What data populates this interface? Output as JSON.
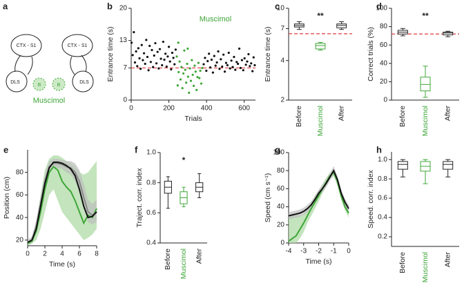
{
  "diagram": {
    "label": "a",
    "left": {
      "cortex": "CTX - S1",
      "striatum": "DLS"
    },
    "right": {
      "cortex": "CTX - S1",
      "striatum": "DLS"
    },
    "injection_marks": [
      "B",
      "B"
    ],
    "drug": "Muscimol"
  },
  "chart_data": [
    {
      "type": "scatter",
      "label": "b",
      "y_label": "Entrance time (s)",
      "x_label": "Trials",
      "annotation": "Muscimol",
      "annotation_color": "#3ea637",
      "xlim": [
        0,
        660
      ],
      "xticks": [
        0,
        200,
        400,
        600
      ],
      "ylim": [
        0,
        20
      ],
      "yticks": [
        0,
        7,
        13,
        20
      ],
      "reference_line": 7,
      "reference_color": "#e0393e",
      "series": [
        {
          "color": "#111111",
          "x": [
            2,
            8,
            14,
            20,
            26,
            32,
            38,
            44,
            50,
            56,
            62,
            68,
            74,
            80,
            86,
            92,
            98,
            104,
            110,
            116,
            122,
            128,
            134,
            140,
            146,
            152,
            158,
            164,
            170,
            176,
            182,
            188,
            194,
            200,
            206,
            212,
            218,
            224,
            230,
            236
          ],
          "values": [
            12.5,
            9.8,
            14.8,
            8.2,
            10.6,
            7.4,
            11.3,
            9.1,
            6.8,
            12.0,
            8.7,
            10.2,
            7.9,
            13.1,
            9.4,
            6.5,
            11.8,
            8.3,
            10.9,
            7.2,
            9.7,
            12.4,
            8.0,
            10.5,
            6.9,
            11.1,
            9.0,
            7.6,
            12.7,
            8.8,
            10.1,
            7.3,
            9.5,
            11.6,
            8.4,
            6.7,
            10.3,
            9.2,
            7.8,
            11.0
          ]
        },
        {
          "color": "#3ea637",
          "x": [
            242,
            247,
            252,
            257,
            262,
            267,
            272,
            277,
            282,
            287,
            292,
            297,
            302,
            307,
            312,
            317,
            322,
            327,
            332,
            337,
            342,
            347,
            352,
            357,
            362,
            367,
            372,
            377,
            250,
            300
          ],
          "values": [
            9.5,
            3.2,
            6.1,
            8.4,
            4.5,
            7.2,
            2.6,
            5.8,
            10.8,
            6.6,
            3.8,
            7.9,
            5.1,
            1.6,
            6.9,
            4.2,
            8.7,
            5.5,
            3.1,
            7.5,
            6.2,
            2.2,
            5.0,
            8.1,
            4.8,
            6.4,
            3.6,
            7.0,
            12.5,
            11.2
          ]
        },
        {
          "color": "#111111",
          "x": [
            385,
            392,
            399,
            406,
            413,
            420,
            427,
            434,
            441,
            448,
            455,
            462,
            469,
            476,
            483,
            490,
            497,
            504,
            511,
            518,
            525,
            532,
            539,
            546,
            553,
            560,
            567,
            574,
            581,
            588,
            595,
            602,
            609,
            616,
            623,
            630,
            637,
            644,
            650,
            656
          ],
          "values": [
            7.8,
            9.2,
            6.4,
            8.5,
            10.1,
            7.1,
            8.8,
            6.0,
            9.6,
            7.5,
            8.2,
            10.6,
            6.8,
            8.9,
            7.3,
            9.9,
            6.2,
            8.1,
            7.6,
            10.3,
            6.9,
            8.6,
            7.2,
            9.4,
            6.6,
            8.3,
            7.9,
            11.2,
            7.0,
            8.7,
            6.5,
            9.1,
            7.7,
            8.4,
            10.0,
            7.4,
            8.0,
            6.3,
            9.3,
            7.6
          ]
        }
      ]
    },
    {
      "type": "box",
      "label": "c",
      "y_label": "Entrance time (s)",
      "annotation": "**",
      "log_scale": true,
      "ylim": [
        2,
        10
      ],
      "yticks": [
        2,
        4,
        7,
        10
      ],
      "reference_line": 6.4,
      "reference_color": "#e0393e",
      "categories": [
        "Before",
        "Muscimol",
        "After"
      ],
      "colors": [
        "#222222",
        "#3ea637",
        "#222222"
      ],
      "boxes": [
        {
          "whislo": 6.9,
          "q1": 7.2,
          "med": 7.4,
          "q3": 7.6,
          "whishi": 7.9
        },
        {
          "whislo": 4.8,
          "q1": 4.9,
          "med": 5.2,
          "q3": 5.4,
          "whishi": 5.5
        },
        {
          "whislo": 6.9,
          "q1": 7.1,
          "med": 7.4,
          "q3": 7.6,
          "whishi": 7.9
        }
      ]
    },
    {
      "type": "box",
      "label": "d",
      "y_label": "Correct trials (%)",
      "annotation": "**",
      "ylim": [
        0,
        100
      ],
      "yticks": [
        0,
        20,
        40,
        60,
        80,
        100
      ],
      "reference_line": 72,
      "reference_color": "#e0393e",
      "categories": [
        "Before",
        "Muscimol",
        "After"
      ],
      "colors": [
        "#222222",
        "#3ea637",
        "#222222"
      ],
      "boxes": [
        {
          "whislo": 70,
          "q1": 72,
          "med": 74,
          "q3": 76,
          "whishi": 78
        },
        {
          "whislo": 3,
          "q1": 10,
          "med": 17,
          "q3": 25,
          "whishi": 37
        },
        {
          "whislo": 69,
          "q1": 71,
          "med": 73,
          "q3": 74,
          "whishi": 75
        }
      ]
    },
    {
      "type": "line",
      "label": "e",
      "y_label": "Position (cm)",
      "x_label": "Time (s)",
      "xlim": [
        0,
        8
      ],
      "xticks": [
        0,
        2,
        4,
        6,
        8
      ],
      "ylim": [
        15,
        100
      ],
      "yticks": [
        20,
        40,
        60,
        80
      ],
      "x": [
        0,
        0.5,
        1,
        1.5,
        2,
        2.5,
        3,
        3.5,
        4,
        4.5,
        5,
        5.5,
        6,
        6.5,
        7,
        7.5,
        8
      ],
      "series": [
        {
          "color": "#3ea637",
          "band_color": "#a9d9a0",
          "values": [
            17,
            19,
            28,
            45,
            65,
            80,
            85,
            82,
            72,
            67,
            63,
            55,
            45,
            35,
            42,
            40,
            48
          ],
          "lower": [
            15,
            17,
            20,
            30,
            45,
            60,
            65,
            55,
            45,
            40,
            35,
            30,
            25,
            20,
            22,
            25,
            30
          ],
          "upper": [
            20,
            22,
            36,
            60,
            82,
            92,
            95,
            95,
            93,
            90,
            88,
            85,
            80,
            78,
            80,
            85,
            90
          ]
        },
        {
          "color": "#888888",
          "band_color": "#bdbdbd",
          "values": [
            18,
            20,
            32,
            52,
            72,
            85,
            88,
            88,
            87,
            85,
            84,
            80,
            72,
            58,
            45,
            42,
            45
          ],
          "lower": [
            16,
            17,
            26,
            45,
            66,
            80,
            84,
            84,
            83,
            80,
            78,
            72,
            62,
            48,
            36,
            34,
            36
          ],
          "upper": [
            20,
            23,
            38,
            58,
            78,
            90,
            92,
            92,
            91,
            90,
            90,
            88,
            82,
            70,
            56,
            52,
            56
          ]
        },
        {
          "color": "#111111",
          "values": [
            18,
            20,
            30,
            50,
            70,
            84,
            89,
            89,
            88,
            86,
            83,
            77,
            65,
            50,
            40,
            41,
            45
          ]
        }
      ]
    },
    {
      "type": "box",
      "label": "f",
      "y_label": "Traject. corr. index",
      "annotation": "*",
      "ylim": [
        0.4,
        1
      ],
      "yticks": [
        0.4,
        0.6,
        0.8,
        {
          "value": 1,
          "label": "1.0"
        }
      ],
      "categories": [
        "Before",
        "Muscimol",
        "After"
      ],
      "colors": [
        "#222222",
        "#3ea637",
        "#222222"
      ],
      "boxes": [
        {
          "whislo": 0.63,
          "q1": 0.73,
          "med": 0.77,
          "q3": 0.81,
          "whishi": 0.84
        },
        {
          "whislo": 0.64,
          "q1": 0.66,
          "med": 0.7,
          "q3": 0.74,
          "whishi": 0.77
        },
        {
          "whislo": 0.7,
          "q1": 0.74,
          "med": 0.77,
          "q3": 0.8,
          "whishi": 0.86
        }
      ]
    },
    {
      "type": "line",
      "label": "g",
      "y_label": "Speed (cm s⁻¹)",
      "x_label": "Time (s)",
      "xlim": [
        -4,
        0
      ],
      "xticks": [
        -4,
        -3,
        -2,
        -1,
        0
      ],
      "ylim": [
        0,
        100
      ],
      "yticks": [
        0,
        20,
        40,
        60,
        80,
        100
      ],
      "x": [
        -4,
        -3.75,
        -3.5,
        -3.25,
        -3,
        -2.75,
        -2.5,
        -2.25,
        -2,
        -1.75,
        -1.5,
        -1.25,
        -1,
        -0.75,
        -0.5,
        -0.25,
        0
      ],
      "series": [
        {
          "color": "#3ea637",
          "band_color": "#a9d9a0",
          "values": [
            2,
            5,
            8,
            15,
            22,
            30,
            38,
            45,
            52,
            60,
            67,
            74,
            78,
            68,
            52,
            40,
            33
          ],
          "lower": [
            0,
            0,
            0,
            5,
            12,
            22,
            30,
            38,
            46,
            55,
            62,
            70,
            74,
            63,
            48,
            36,
            28
          ],
          "upper": [
            30,
            32,
            33,
            30,
            32,
            38,
            45,
            52,
            58,
            65,
            72,
            78,
            82,
            72,
            56,
            44,
            38
          ]
        },
        {
          "color": "#111111",
          "band_color": "#bdbdbd",
          "values": [
            30,
            31,
            32,
            33,
            35,
            38,
            42,
            48,
            55,
            60,
            66,
            73,
            80,
            70,
            55,
            45,
            38
          ],
          "lower": [
            26,
            27,
            28,
            29,
            31,
            34,
            38,
            44,
            51,
            56,
            62,
            69,
            75,
            66,
            51,
            41,
            34
          ],
          "upper": [
            34,
            35,
            36,
            37,
            39,
            42,
            46,
            52,
            59,
            64,
            70,
            77,
            85,
            74,
            59,
            49,
            42
          ]
        }
      ]
    },
    {
      "type": "box",
      "label": "h",
      "y_label": "Speed. corr. index",
      "ylim": [
        0.1,
        1.08
      ],
      "yticks": [
        0.2,
        0.4,
        0.6,
        0.8,
        {
          "value": 1,
          "label": "1.0"
        }
      ],
      "categories": [
        "Before",
        "Muscimol",
        "After"
      ],
      "colors": [
        "#222222",
        "#3ea637",
        "#222222"
      ],
      "boxes": [
        {
          "whislo": 0.82,
          "q1": 0.9,
          "med": 0.95,
          "q3": 0.98,
          "whishi": 1.0
        },
        {
          "whislo": 0.75,
          "q1": 0.88,
          "med": 0.93,
          "q3": 0.98,
          "whishi": 1.0
        },
        {
          "whislo": 0.82,
          "q1": 0.9,
          "med": 0.95,
          "q3": 0.98,
          "whishi": 1.0
        }
      ]
    }
  ]
}
